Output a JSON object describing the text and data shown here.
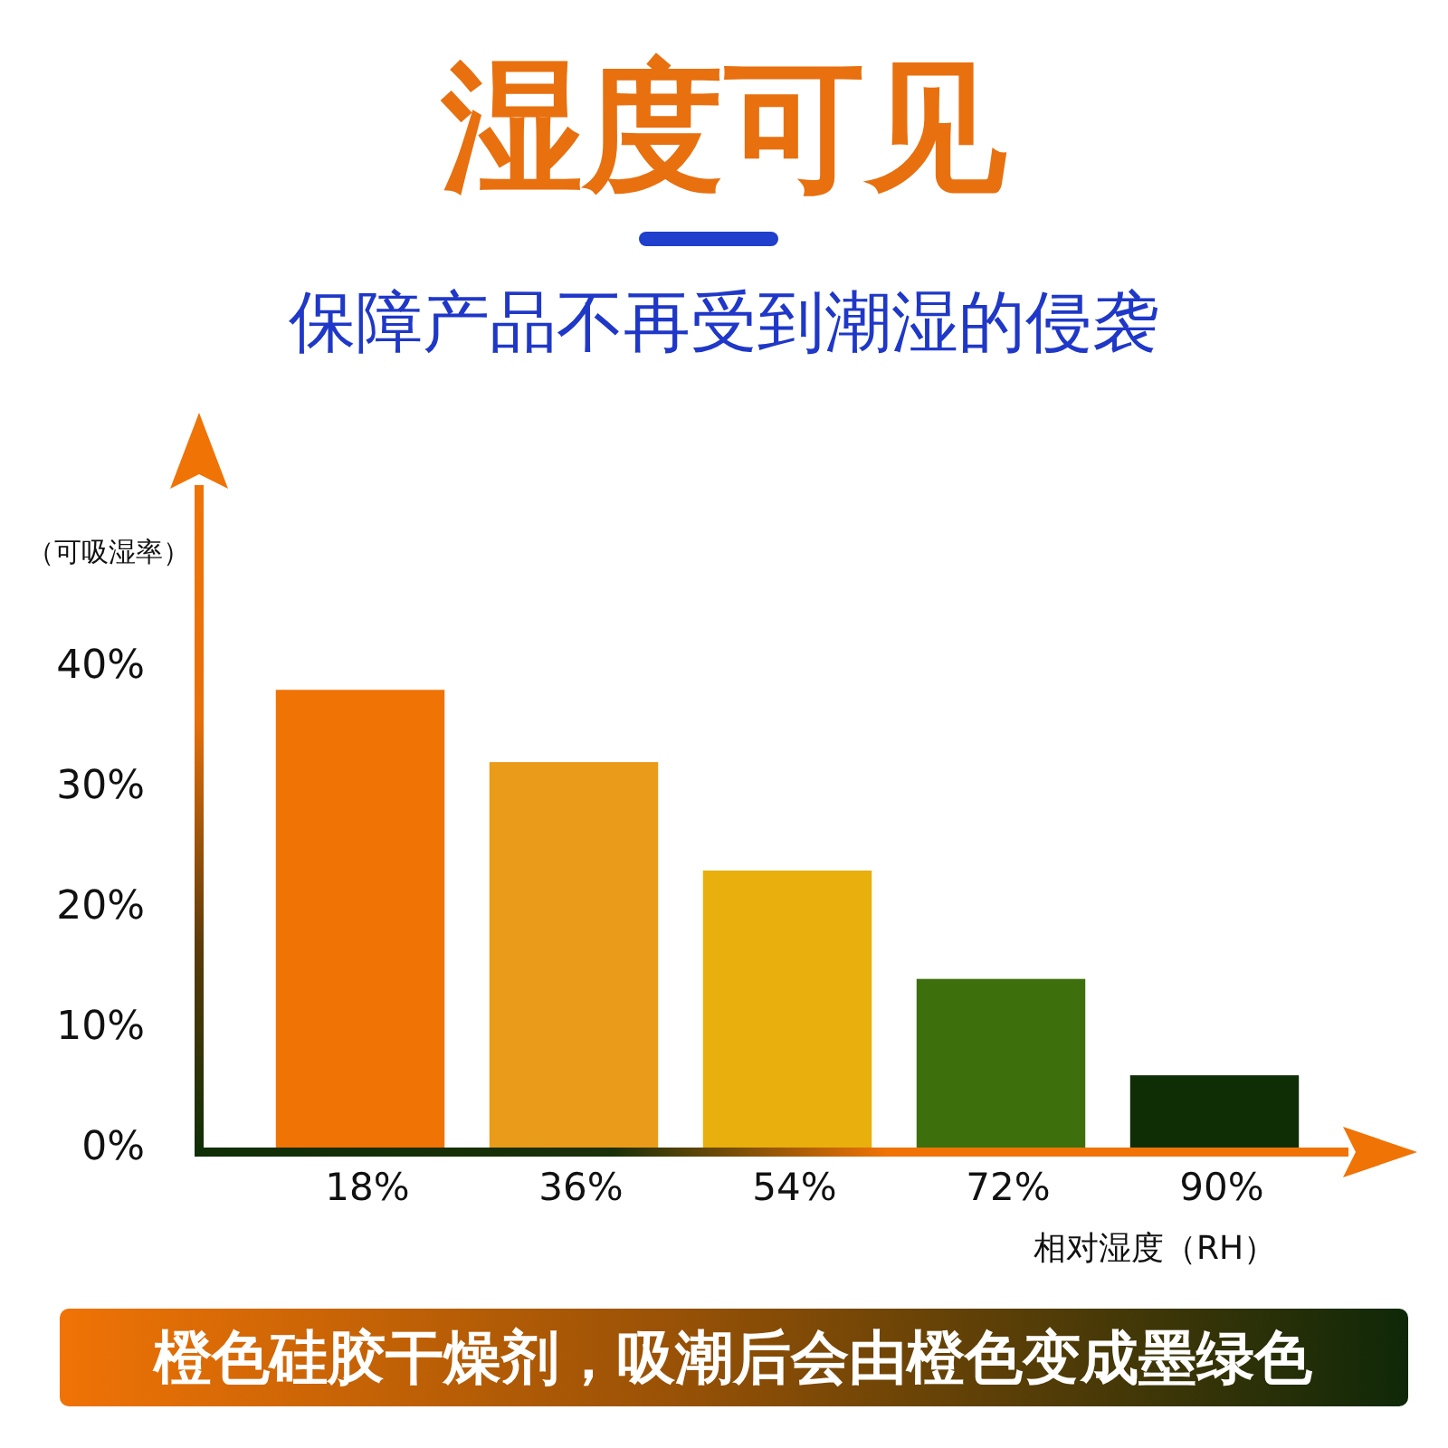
{
  "chart_data": {
    "type": "bar",
    "title": "湿度可见",
    "subtitle": "保障产品不再受到潮湿的侵袭",
    "ylabel": "（可吸湿率）",
    "xlabel": "相对湿度（RH）",
    "categories": [
      "18%",
      "36%",
      "54%",
      "72%",
      "90%"
    ],
    "values": [
      38,
      32,
      23,
      14,
      6
    ],
    "colors": [
      "#f07306",
      "#ea9b1a",
      "#e8af0d",
      "#3d700d",
      "#102e06"
    ],
    "ylim": [
      0,
      55
    ],
    "yticks": [
      {
        "value": 0,
        "label": "0%"
      },
      {
        "value": 10,
        "label": "10%"
      },
      {
        "value": 20,
        "label": "20%"
      },
      {
        "value": 30,
        "label": "30%"
      },
      {
        "value": 40,
        "label": "40%"
      }
    ],
    "annotations": [
      "橙色硅胶干燥剂，吸潮后会由橙色变成墨绿色"
    ]
  }
}
